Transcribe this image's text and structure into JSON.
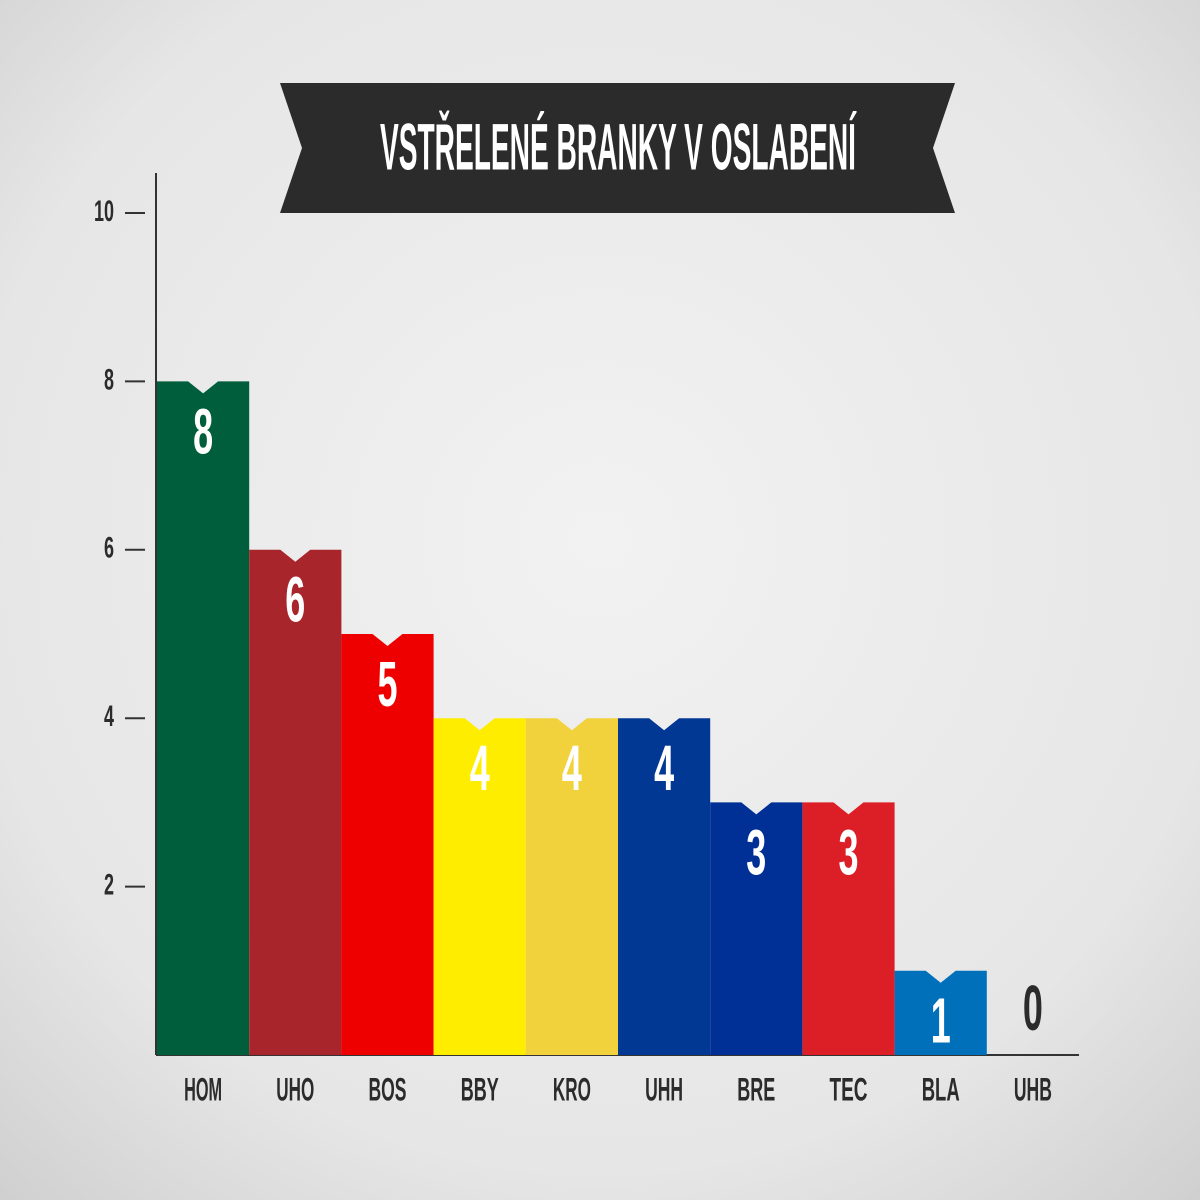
{
  "chart_data": {
    "type": "bar",
    "title": "VSTŘELENÉ BRANKY V OSLABENÍ",
    "categories": [
      "HOM",
      "UHO",
      "BOS",
      "BBY",
      "KRO",
      "UHH",
      "BRE",
      "TEC",
      "BLA",
      "UHB"
    ],
    "values": [
      8,
      6,
      5,
      4,
      4,
      4,
      3,
      3,
      1,
      0
    ],
    "colors": [
      "#005e3c",
      "#a8262b",
      "#ee0000",
      "#ffed00",
      "#f2d23c",
      "#003893",
      "#002f96",
      "#dc1f26",
      "#0070bb",
      "#3a3a3a"
    ],
    "ylim": [
      0,
      10.5
    ],
    "yticks": [
      2,
      4,
      6,
      8,
      10
    ]
  }
}
